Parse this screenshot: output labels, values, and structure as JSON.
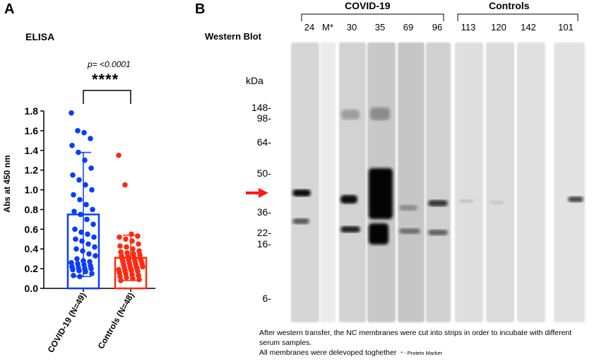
{
  "panel_a": {
    "letter": "A",
    "title": "ELISA",
    "p_value": "p= <0.0001",
    "significance": "****",
    "ylabel": "Abs at 450 nm",
    "categories": [
      "COVID-19 (N=49)",
      "Controls (N=48)"
    ],
    "colors": {
      "covid": "#0a3cff",
      "controls": "#ff2a10"
    }
  },
  "panel_b": {
    "letter": "B",
    "title": "Western Blot",
    "groups": [
      {
        "label": "COVID-19",
        "lanes": [
          "24",
          "M*",
          "30",
          "35",
          "69",
          "96"
        ]
      },
      {
        "label": "Controls",
        "lanes": [
          "113",
          "120",
          "142",
          "101"
        ]
      }
    ],
    "kda_label": "kDa",
    "markers": [
      "148-",
      "98-",
      "64-",
      "50-",
      "36-",
      "22-",
      "16-",
      "6-"
    ],
    "arrow_color": "#ff1a1a",
    "caption": [
      "After western transfer, the NC membranes were cut into strips in order to incubate with different",
      "serum samples.",
      "All membranes were delevoped toghether"
    ],
    "caption_note": "* - Protein Marker"
  },
  "chart_data": [
    {
      "type": "bar",
      "title": "ELISA",
      "ylabel": "Abs at 450 nm",
      "xlabel": "",
      "categories": [
        "COVID-19 (N=49)",
        "Controls (N=48)"
      ],
      "ylim": [
        0,
        1.8
      ],
      "yticks": [
        0.0,
        0.2,
        0.4,
        0.6,
        0.8,
        1.0,
        1.2,
        1.4,
        1.6,
        1.8
      ],
      "means": [
        0.75,
        0.31
      ],
      "sd_upper": [
        1.38,
        0.54
      ],
      "sd_lower": [
        0.12,
        0.08
      ],
      "points": [
        [
          1.78,
          1.6,
          1.58,
          1.52,
          1.45,
          1.38,
          1.3,
          1.22,
          1.15,
          1.1,
          1.05,
          1.0,
          0.95,
          0.9,
          0.85,
          0.8,
          0.78,
          0.75,
          0.7,
          0.65,
          0.6,
          0.57,
          0.55,
          0.52,
          0.5,
          0.48,
          0.45,
          0.42,
          0.4,
          0.38,
          0.35,
          0.33,
          0.3,
          0.28,
          0.27,
          0.26,
          0.25,
          0.24,
          0.23,
          0.22,
          0.21,
          0.2,
          0.2,
          0.19,
          0.18,
          0.17,
          0.15,
          0.13,
          0.12
        ],
        [
          1.35,
          1.05,
          0.55,
          0.53,
          0.52,
          0.5,
          0.48,
          0.45,
          0.43,
          0.42,
          0.4,
          0.38,
          0.37,
          0.36,
          0.35,
          0.34,
          0.33,
          0.32,
          0.31,
          0.3,
          0.3,
          0.29,
          0.28,
          0.28,
          0.27,
          0.26,
          0.25,
          0.25,
          0.24,
          0.23,
          0.22,
          0.22,
          0.21,
          0.2,
          0.2,
          0.19,
          0.18,
          0.18,
          0.17,
          0.16,
          0.15,
          0.14,
          0.13,
          0.12,
          0.11,
          0.1,
          0.09,
          0.08
        ]
      ],
      "annotation": "p= <0.0001 ****"
    },
    {
      "type": "blot",
      "title": "Western Blot",
      "lanes": [
        "24",
        "M*",
        "30",
        "35",
        "69",
        "96",
        "113",
        "120",
        "142",
        "101"
      ],
      "groups": [
        "COVID-19",
        "Controls"
      ],
      "markers_kda": [
        "148",
        "98",
        "64",
        "50",
        "36",
        "22",
        "16",
        "6"
      ]
    }
  ]
}
